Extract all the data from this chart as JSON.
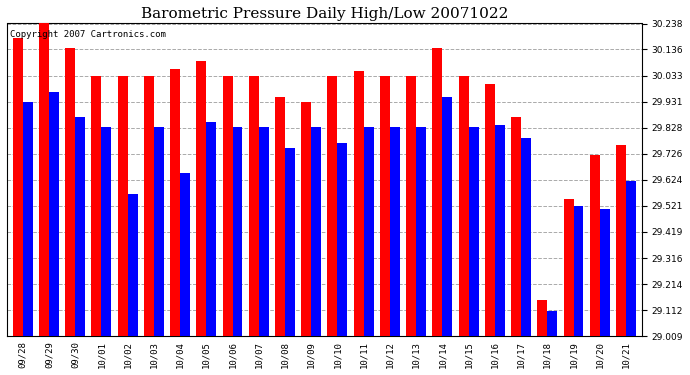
{
  "title": "Barometric Pressure Daily High/Low 20071022",
  "copyright_text": "Copyright 2007 Cartronics.com",
  "dates": [
    "09/28",
    "09/29",
    "09/30",
    "10/01",
    "10/02",
    "10/03",
    "10/04",
    "10/05",
    "10/06",
    "10/07",
    "10/08",
    "10/09",
    "10/10",
    "10/11",
    "10/12",
    "10/13",
    "10/14",
    "10/15",
    "10/16",
    "10/17",
    "10/18",
    "10/19",
    "10/20",
    "10/21"
  ],
  "highs": [
    30.18,
    30.25,
    30.14,
    30.03,
    30.03,
    30.03,
    30.06,
    30.09,
    30.03,
    30.03,
    29.95,
    29.93,
    30.03,
    30.05,
    30.03,
    30.03,
    30.14,
    30.03,
    30.0,
    29.87,
    29.15,
    29.55,
    29.72,
    29.76
  ],
  "lows": [
    29.93,
    29.97,
    29.87,
    29.83,
    29.57,
    29.83,
    29.65,
    29.85,
    29.83,
    29.83,
    29.75,
    29.83,
    29.77,
    29.83,
    29.83,
    29.83,
    29.95,
    29.83,
    29.84,
    29.79,
    29.11,
    29.52,
    29.51,
    29.62
  ],
  "high_color": "#ff0000",
  "low_color": "#0000ff",
  "bg_color": "#ffffff",
  "plot_bg_color": "#ffffff",
  "grid_color": "#aaaaaa",
  "ymin": 29.009,
  "ymax": 30.238,
  "yticks": [
    29.009,
    29.112,
    29.214,
    29.316,
    29.419,
    29.521,
    29.624,
    29.726,
    29.828,
    29.931,
    30.033,
    30.136,
    30.238
  ],
  "bar_width": 0.38,
  "title_fontsize": 11,
  "tick_fontsize": 6.5,
  "copyright_fontsize": 6.5,
  "fig_width": 6.9,
  "fig_height": 3.75
}
